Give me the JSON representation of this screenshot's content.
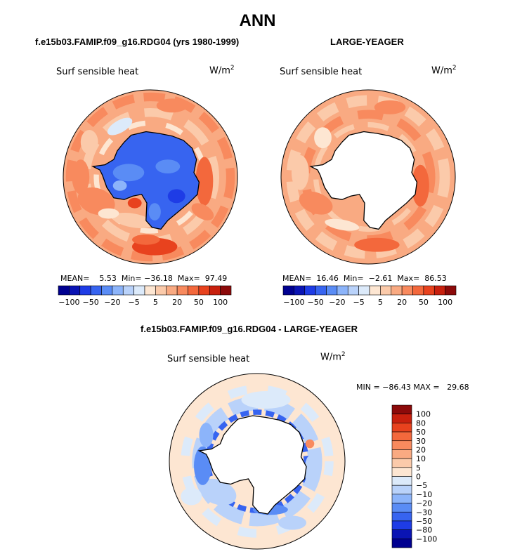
{
  "title": "ANN",
  "panels": [
    {
      "case_title": "f.e15b03.FAMIP.f09_g16.RDG04 (yrs 1980-1999)",
      "variable": "Surf sensible heat",
      "unit_base": "W/m",
      "unit_exp": "2",
      "stats": "MEAN=    5.53  Min= −36.18  Max=  97.49"
    },
    {
      "case_title": "LARGE-YEAGER",
      "variable": "Surf sensible heat",
      "unit_base": "W/m",
      "unit_exp": "2",
      "stats": "MEAN=  16.46  Min=  −2.61  Max=  86.53"
    },
    {
      "case_title": "f.e15b03.FAMIP.f09_g16.RDG04 - LARGE-YEAGER",
      "variable": "Surf sensible heat",
      "unit_base": "W/m",
      "unit_exp": "2",
      "stats": "MIN = −86.43 MAX =   29.68"
    }
  ],
  "chart_data": [
    {
      "type": "heatmap",
      "projection": "south-polar-stereographic",
      "title": "f.e15b03.FAMIP.f09_g16.RDG04 (yrs 1980-1999)",
      "variable": "Surf sensible heat",
      "units": "W/m^2",
      "mean": 5.53,
      "min": -36.18,
      "max": 97.49,
      "colorbar": {
        "orientation": "horizontal",
        "tick_labels": [
          "−100",
          "−50",
          "−20",
          "−5",
          "5",
          "20",
          "50",
          "100"
        ],
        "levels": [
          -100,
          -80,
          -50,
          -30,
          -20,
          -10,
          -5,
          0,
          5,
          10,
          20,
          30,
          50,
          80,
          100
        ],
        "colors": [
          "#000090",
          "#0a14b4",
          "#1e3ce6",
          "#3764f0",
          "#5a8cf5",
          "#8cb4fa",
          "#b9d2fa",
          "#dceafa",
          "#fde6d2",
          "#fbcaaa",
          "#f9aa82",
          "#f88a5e",
          "#f3683c",
          "#e8421e",
          "#c8200e",
          "#8c0a0a"
        ]
      }
    },
    {
      "type": "heatmap",
      "projection": "south-polar-stereographic",
      "title": "LARGE-YEAGER",
      "variable": "Surf sensible heat",
      "units": "W/m^2",
      "mean": 16.46,
      "min": -2.61,
      "max": 86.53,
      "colorbar": {
        "orientation": "horizontal",
        "tick_labels": [
          "−100",
          "−50",
          "−20",
          "−5",
          "5",
          "20",
          "50",
          "100"
        ]
      }
    },
    {
      "type": "heatmap",
      "projection": "south-polar-stereographic",
      "title": "f.e15b03.FAMIP.f09_g16.RDG04 - LARGE-YEAGER",
      "variable": "Surf sensible heat",
      "units": "W/m^2",
      "min": -86.43,
      "max": 29.68,
      "colorbar": {
        "orientation": "vertical",
        "tick_labels": [
          "100",
          "80",
          "50",
          "30",
          "20",
          "10",
          "5",
          "0",
          "−5",
          "−10",
          "−20",
          "−30",
          "−50",
          "−80",
          "−100"
        ]
      }
    }
  ]
}
